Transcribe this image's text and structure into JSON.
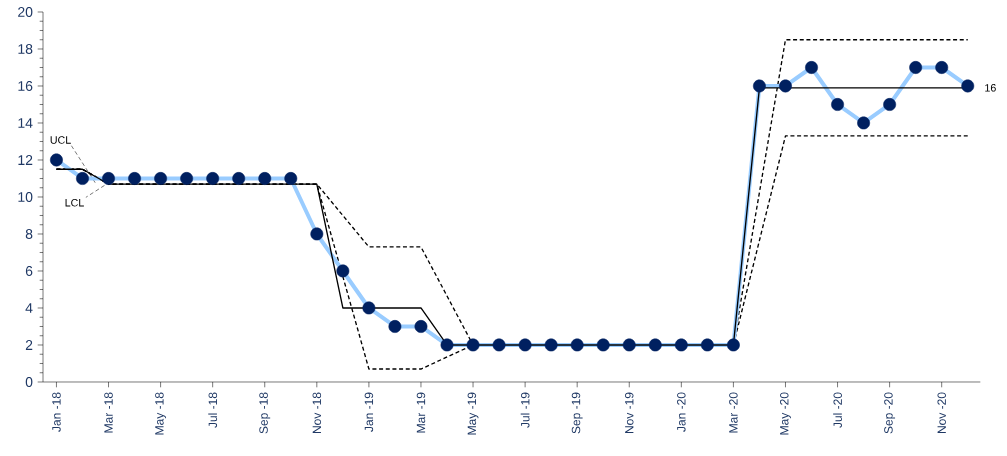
{
  "chart_data": {
    "type": "line",
    "xlim": [
      "2017-12-16",
      "2020-12-16"
    ],
    "xticks": [
      {
        "value": "2018-01",
        "label": "Jan -18"
      },
      {
        "value": "2018-03",
        "label": "Mar -18"
      },
      {
        "value": "2018-05",
        "label": "May -18"
      },
      {
        "value": "2018-07",
        "label": "Jul -18"
      },
      {
        "value": "2018-09",
        "label": "Sep -18"
      },
      {
        "value": "2018-11",
        "label": "Nov -18"
      },
      {
        "value": "2019-01",
        "label": "Jan -19"
      },
      {
        "value": "2019-03",
        "label": "Mar -19"
      },
      {
        "value": "2019-05",
        "label": "May -19"
      },
      {
        "value": "2019-07",
        "label": "Jul -19"
      },
      {
        "value": "2019-09",
        "label": "Sep -19"
      },
      {
        "value": "2019-11",
        "label": "Nov -19"
      },
      {
        "value": "2020-01",
        "label": "Jan -20"
      },
      {
        "value": "2020-03",
        "label": "Mar -20"
      },
      {
        "value": "2020-05",
        "label": "May -20"
      },
      {
        "value": "2020-07",
        "label": "Jul -20"
      },
      {
        "value": "2020-09",
        "label": "Sep -20"
      },
      {
        "value": "2020-11",
        "label": "Nov -20"
      }
    ],
    "ylim": [
      0,
      20
    ],
    "yticks": [
      0,
      2,
      4,
      6,
      8,
      10,
      12,
      14,
      16,
      18,
      20
    ],
    "legend": false,
    "grid": false,
    "series": [
      {
        "name": "UCL",
        "color": "#000000",
        "line_style": "dashed",
        "marker": "none",
        "x": [
          "2018-01",
          "2018-02",
          "2018-03",
          "2018-11",
          "2019-01",
          "2019-03",
          "2019-05",
          "2020-03",
          "2020-05",
          "2020-12"
        ],
        "values": [
          11.5,
          11.5,
          10.7,
          10.7,
          7.3,
          7.3,
          2,
          2,
          18.5,
          18.5
        ]
      },
      {
        "name": "LCL",
        "color": "#000000",
        "line_style": "dashed",
        "marker": "none",
        "x": [
          "2018-01",
          "2018-02",
          "2018-03",
          "2018-11",
          "2019-01",
          "2019-03",
          "2019-05",
          "2020-03",
          "2020-05",
          "2020-12"
        ],
        "values": [
          11.5,
          11.5,
          10.7,
          10.7,
          0.7,
          0.7,
          2,
          2,
          13.3,
          13.3
        ]
      },
      {
        "color": "#99ccff",
        "line_style": "solid",
        "marker": "circle",
        "colors": [
          "#002060",
          "#002060",
          "#002060",
          "#002060",
          "#002060",
          "#002060",
          "#002060",
          "#002060",
          "#002060",
          "#002060",
          "#002060",
          "#002060",
          "#002060",
          "#002060",
          "#002060",
          "#002060",
          "#002060",
          "#002060",
          "#002060",
          "#002060",
          "#002060",
          "#002060",
          "#002060",
          "#002060",
          "#002060",
          "#002060",
          "#002060",
          "#002060",
          "#002060",
          "#002060",
          "#002060",
          "#002060",
          "#002060",
          "#002060",
          "#002060",
          "#002060"
        ],
        "x": [
          "2018-01",
          "2018-02",
          "2018-03",
          "2018-04",
          "2018-05",
          "2018-06",
          "2018-07",
          "2018-08",
          "2018-09",
          "2018-10",
          "2018-11",
          "2018-12",
          "2019-01",
          "2019-02",
          "2019-03",
          "2019-04",
          "2019-05",
          "2019-06",
          "2019-07",
          "2019-08",
          "2019-09",
          "2019-10",
          "2019-11",
          "2019-12",
          "2020-01",
          "2020-02",
          "2020-03",
          "2020-04",
          "2020-05",
          "2020-06",
          "2020-07",
          "2020-08",
          "2020-09",
          "2020-10",
          "2020-11",
          "2020-12"
        ],
        "values": [
          12,
          11,
          11,
          11,
          11,
          11,
          11,
          11,
          11,
          11,
          8,
          6,
          4,
          3,
          3,
          2,
          2,
          2,
          2,
          2,
          2,
          2,
          2,
          2,
          2,
          2,
          2,
          16,
          16,
          17,
          15,
          14,
          15,
          17,
          17,
          16
        ]
      },
      {
        "color": "#000000",
        "line_style": "solid",
        "marker": "none",
        "x": [
          "2018-01",
          "2018-02",
          "2018-03",
          "2018-11",
          "2018-12",
          "2019-03",
          "2019-04",
          "2020-03",
          "2020-04",
          "2020-12"
        ],
        "values": [
          11.5,
          11.5,
          10.7,
          10.7,
          4,
          4,
          2,
          2,
          15.9,
          15.9
        ]
      }
    ],
    "annotations": [
      {
        "text": "16",
        "x": "2020-12",
        "y": 15.9
      }
    ]
  }
}
